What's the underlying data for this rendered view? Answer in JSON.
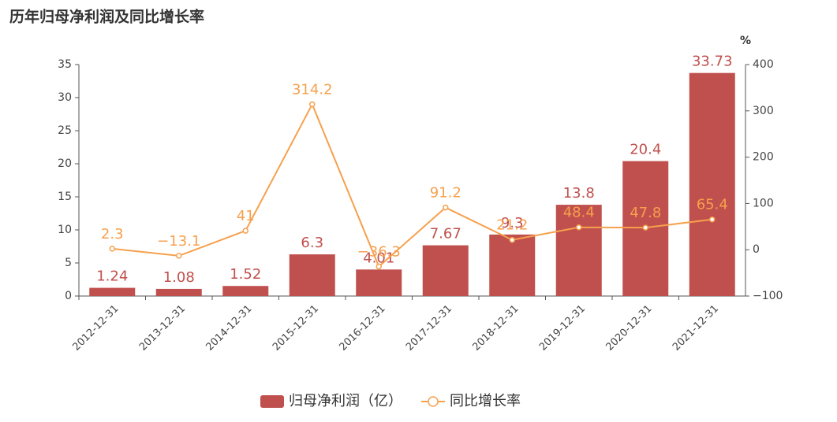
{
  "chart_data": {
    "type": "bar-line",
    "title": "历年归母净利润及同比增长率",
    "y2_label": "%",
    "categories": [
      "2012-12-31",
      "2013-12-31",
      "2014-12-31",
      "2015-12-31",
      "2016-12-31",
      "2017-12-31",
      "2018-12-31",
      "2019-12-31",
      "2020-12-31",
      "2021-12-31"
    ],
    "series": [
      {
        "name": "归母净利润（亿）",
        "color": "#c0504d",
        "label_color": "#c0504d",
        "type": "bar",
        "values": [
          1.24,
          1.08,
          1.52,
          6.3,
          4.01,
          7.67,
          9.3,
          13.8,
          20.4,
          33.73
        ]
      },
      {
        "name": "同比增长率",
        "color": "#f6a04d",
        "label_color": "#f6a04d",
        "type": "line",
        "axis": "y2",
        "values": [
          2.3,
          -13.1,
          41,
          314.2,
          -36.3,
          91.2,
          21.2,
          48.4,
          47.8,
          65.4
        ],
        "value_labels": [
          "2.3",
          "−13.1",
          "41",
          "314.2",
          "−36.3",
          "91.2",
          "21.2",
          "48.4",
          "47.8",
          "65.4"
        ]
      }
    ],
    "ylim": [
      0,
      35
    ],
    "yticks": [
      0,
      5,
      10,
      15,
      20,
      25,
      30,
      35
    ],
    "y2lim": [
      -100,
      400
    ],
    "y2ticks": [
      {
        "value": -100,
        "label": "−100"
      },
      0,
      100,
      200,
      300,
      400
    ],
    "legend": "bottom"
  }
}
